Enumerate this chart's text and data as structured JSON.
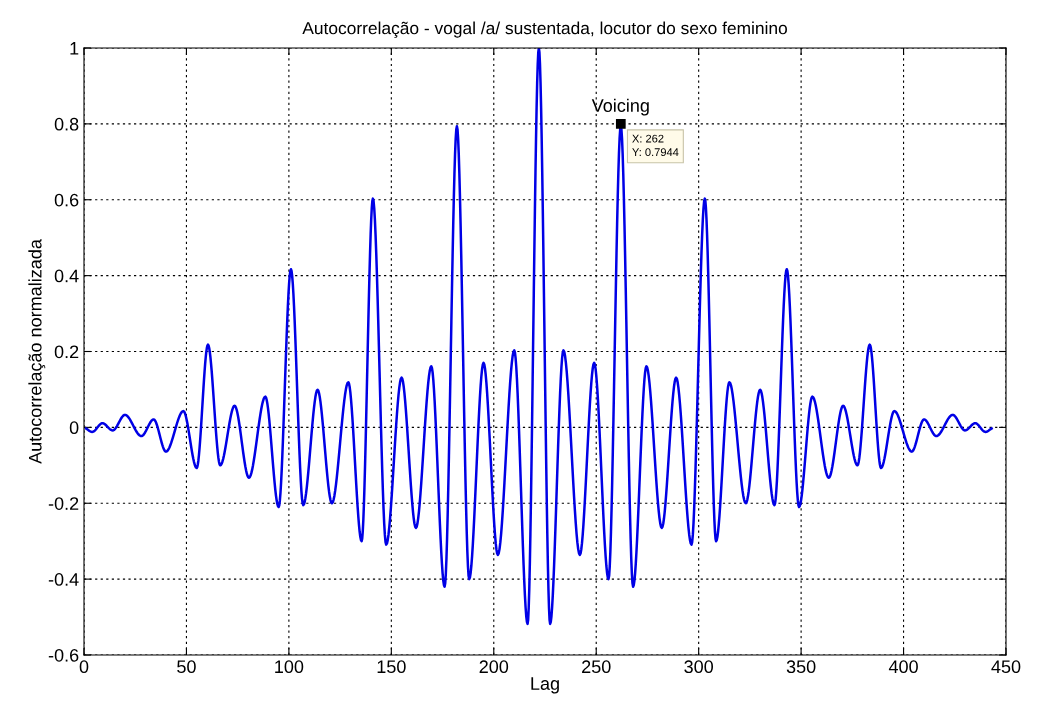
{
  "chart_data": {
    "type": "line",
    "title": "Autocorrelação - vogal /a/ sustentada, locutor do sexo feminino",
    "xlabel": "Lag",
    "ylabel": "Autocorrelação normalizada",
    "x": [
      1,
      4,
      9,
      14,
      20,
      28,
      34,
      40,
      48.5,
      55,
      60.5,
      66.5,
      73.5,
      80.5,
      88.5,
      95,
      101,
      107,
      114,
      121,
      129,
      135.5,
      141,
      147.5,
      155,
      162,
      169.5,
      176,
      182,
      188,
      195,
      202,
      210,
      216.5,
      222,
      227.5,
      234,
      242,
      249,
      256,
      262,
      268,
      274.5,
      282,
      289,
      296.5,
      303,
      308.5,
      315,
      323,
      330,
      337,
      343,
      349,
      355.5,
      363.5,
      370.5,
      377.5,
      383.5,
      389,
      395.5,
      404,
      410,
      416,
      424,
      430,
      435,
      440,
      443
    ],
    "series": [
      {
        "color": "#0000e6",
        "values": [
          -0.003,
          -0.012,
          0.011,
          -0.008,
          0.033,
          -0.023,
          0.021,
          -0.064,
          0.043,
          -0.107,
          0.218,
          -0.1,
          0.057,
          -0.133,
          0.081,
          -0.21,
          0.417,
          -0.205,
          0.099,
          -0.2,
          0.119,
          -0.3,
          0.603,
          -0.309,
          0.131,
          -0.265,
          0.161,
          -0.42,
          0.794,
          -0.4,
          0.17,
          -0.336,
          0.203,
          -0.518,
          1.0,
          -0.518,
          0.203,
          -0.336,
          0.17,
          -0.4,
          0.7944,
          -0.42,
          0.161,
          -0.265,
          0.131,
          -0.309,
          0.603,
          -0.3,
          0.119,
          -0.2,
          0.099,
          -0.205,
          0.417,
          -0.21,
          0.081,
          -0.133,
          0.057,
          -0.1,
          0.218,
          -0.107,
          0.043,
          -0.064,
          0.021,
          -0.023,
          0.033,
          -0.008,
          0.011,
          -0.012,
          -0.003
        ]
      }
    ],
    "annotations": [
      {
        "text": "Voicing",
        "x": 262,
        "y": 0.8
      },
      {
        "text": "X: 262\nY: 0.7944",
        "x": 262,
        "y": 0.7944
      }
    ],
    "xlim": [
      0,
      450
    ],
    "xticks": [
      0,
      50,
      100,
      150,
      200,
      250,
      300,
      350,
      400,
      450
    ],
    "ylim": [
      -0.6,
      1
    ],
    "yticks": [
      -0.6,
      -0.4,
      -0.2,
      0,
      0.2,
      0.4,
      0.6,
      0.8,
      1
    ],
    "grid": true,
    "line_style": "solid",
    "marker": "none"
  }
}
